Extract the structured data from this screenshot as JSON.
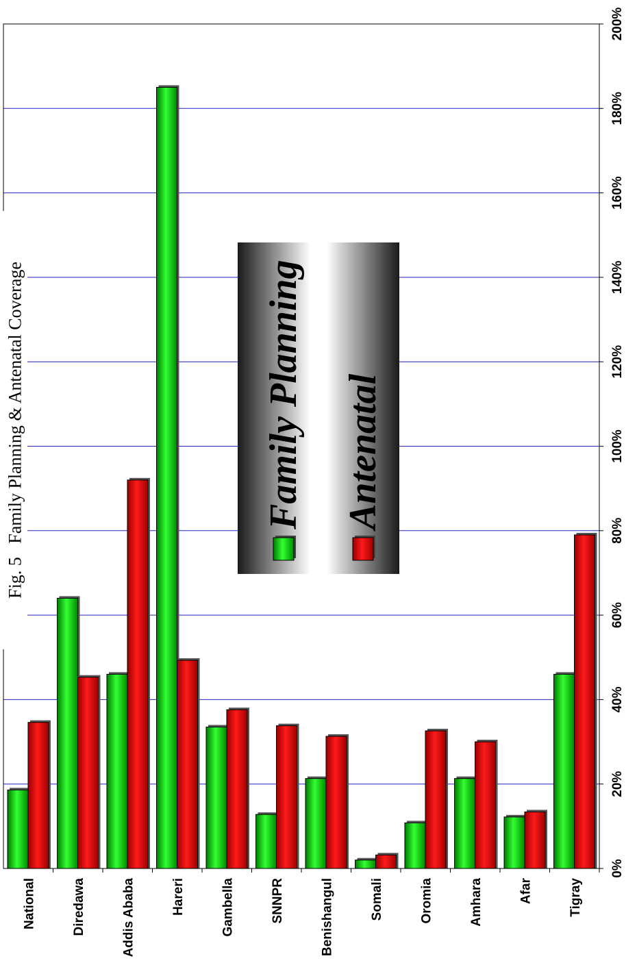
{
  "chart_data": {
    "type": "bar",
    "orientation": "rotated-90",
    "title": "Fig. 5   Family Planning & Antenatal Coverage",
    "categories": [
      "National",
      "Diredawa",
      "Addis Ababa",
      "Hareri",
      "Gambella",
      "SNNPR",
      "Benishangul",
      "Somali",
      "Oromia",
      "Amhara",
      "Afar",
      "Tigray"
    ],
    "series": [
      {
        "name": "Family Planning",
        "color": "#00cc00",
        "values": [
          18.6,
          64,
          46,
          185,
          33.5,
          12.8,
          21.3,
          2,
          10.8,
          21.3,
          12.2,
          46
        ]
      },
      {
        "name": "Antenatal",
        "color": "#ee0000",
        "values": [
          34.6,
          45.3,
          92,
          49.3,
          37.6,
          33.8,
          31.3,
          3.2,
          32.6,
          30,
          13.4,
          79
        ]
      }
    ],
    "ylim": [
      0,
      200
    ],
    "ticks": [
      "0%",
      "20%",
      "40%",
      "60%",
      "80%",
      "100%",
      "120%",
      "140%",
      "160%",
      "180%",
      "200%"
    ],
    "grid": true,
    "legend": "center-right"
  }
}
